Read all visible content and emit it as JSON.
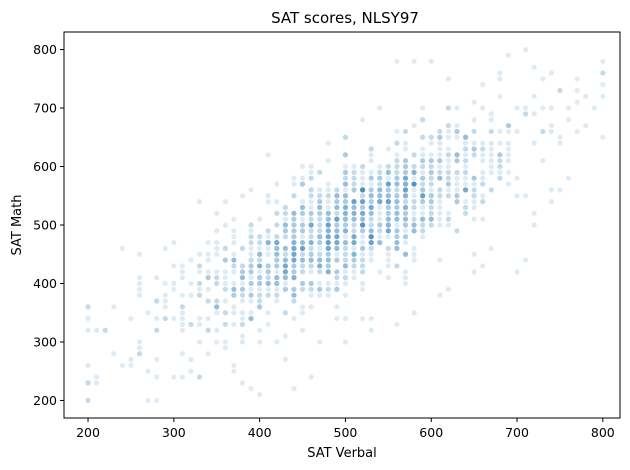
{
  "chart_data": {
    "type": "scatter",
    "title": "SAT scores, NLSY97",
    "xlabel": "SAT Verbal",
    "ylabel": "SAT Math",
    "xlim": [
      172,
      820
    ],
    "ylim": [
      170,
      830
    ],
    "xticks": [
      200,
      300,
      400,
      500,
      600,
      700,
      800
    ],
    "yticks": [
      200,
      300,
      400,
      500,
      600,
      700,
      800
    ],
    "grid": false,
    "legend": "none",
    "marker_color": "#1f77b4",
    "marker_alpha": 0.15,
    "trend": {
      "intercept": 155,
      "slope": 0.68,
      "noise": 52
    },
    "x_center": 500,
    "x_spread": 95,
    "n_points": 1400,
    "series": [
      {
        "values": [
          [
            200,
            360
          ],
          [
            200,
            340
          ],
          [
            200,
            320
          ],
          [
            200,
            260
          ],
          [
            200,
            230
          ],
          [
            210,
            230
          ],
          [
            210,
            320
          ],
          [
            220,
            320
          ],
          [
            230,
            360
          ],
          [
            240,
            460
          ],
          [
            250,
            270
          ],
          [
            250,
            260
          ],
          [
            260,
            450
          ],
          [
            260,
            300
          ],
          [
            260,
            380
          ],
          [
            260,
            410
          ],
          [
            270,
            200
          ],
          [
            270,
            250
          ],
          [
            270,
            350
          ],
          [
            280,
            200
          ],
          [
            280,
            240
          ],
          [
            280,
            340
          ],
          [
            290,
            400
          ],
          [
            300,
            240
          ],
          [
            310,
            240
          ],
          [
            320,
            250
          ],
          [
            330,
            240
          ],
          [
            340,
            280
          ],
          [
            350,
            300
          ],
          [
            360,
            290
          ],
          [
            370,
            260
          ],
          [
            370,
            250
          ],
          [
            380,
            230
          ],
          [
            390,
            220
          ],
          [
            400,
            210
          ],
          [
            420,
            300
          ],
          [
            430,
            270
          ],
          [
            440,
            220
          ],
          [
            460,
            240
          ],
          [
            470,
            300
          ],
          [
            500,
            300
          ],
          [
            520,
            340
          ],
          [
            530,
            320
          ],
          [
            560,
            330
          ],
          [
            580,
            350
          ],
          [
            610,
            380
          ],
          [
            620,
            390
          ],
          [
            650,
            420
          ],
          [
            650,
            450
          ],
          [
            670,
            460
          ],
          [
            700,
            420
          ],
          [
            710,
            440
          ],
          [
            720,
            500
          ],
          [
            730,
            660
          ],
          [
            740,
            540
          ],
          [
            750,
            560
          ],
          [
            760,
            580
          ],
          [
            770,
            660
          ],
          [
            780,
            670
          ],
          [
            790,
            700
          ],
          [
            800,
            650
          ],
          [
            800,
            720
          ],
          [
            800,
            740
          ],
          [
            800,
            760
          ],
          [
            800,
            780
          ],
          [
            780,
            720
          ],
          [
            770,
            750
          ],
          [
            750,
            730
          ],
          [
            740,
            700
          ],
          [
            720,
            770
          ],
          [
            710,
            800
          ],
          [
            690,
            790
          ],
          [
            680,
            760
          ],
          [
            660,
            740
          ],
          [
            650,
            710
          ],
          [
            620,
            700
          ],
          [
            600,
            780
          ],
          [
            580,
            780
          ],
          [
            560,
            780
          ],
          [
            540,
            700
          ],
          [
            520,
            680
          ],
          [
            500,
            650
          ],
          [
            480,
            640
          ],
          [
            460,
            600
          ],
          [
            440,
            580
          ],
          [
            420,
            570
          ],
          [
            410,
            620
          ],
          [
            390,
            560
          ],
          [
            360,
            500
          ],
          [
            350,
            520
          ],
          [
            330,
            540
          ],
          [
            300,
            470
          ],
          [
            290,
            460
          ],
          [
            310,
            360
          ],
          [
            330,
            400
          ],
          [
            340,
            370
          ],
          [
            350,
            410
          ],
          [
            360,
            350
          ],
          [
            370,
            380
          ],
          [
            380,
            420
          ],
          [
            390,
            400
          ],
          [
            400,
            430
          ],
          [
            410,
            390
          ],
          [
            420,
            450
          ],
          [
            430,
            410
          ],
          [
            440,
            480
          ],
          [
            450,
            470
          ],
          [
            460,
            500
          ],
          [
            470,
            490
          ],
          [
            480,
            520
          ],
          [
            490,
            510
          ],
          [
            500,
            530
          ],
          [
            510,
            540
          ],
          [
            520,
            560
          ],
          [
            530,
            520
          ],
          [
            540,
            580
          ],
          [
            550,
            560
          ],
          [
            560,
            600
          ],
          [
            570,
            590
          ],
          [
            580,
            620
          ],
          [
            590,
            610
          ],
          [
            600,
            640
          ],
          [
            610,
            600
          ],
          [
            620,
            630
          ],
          [
            630,
            660
          ],
          [
            640,
            650
          ],
          [
            650,
            680
          ],
          [
            660,
            630
          ],
          [
            670,
            690
          ],
          [
            680,
            720
          ],
          [
            690,
            660
          ],
          [
            700,
            700
          ],
          [
            710,
            690
          ],
          [
            720,
            720
          ],
          [
            730,
            700
          ],
          [
            740,
            660
          ],
          [
            750,
            640
          ]
        ]
      }
    ]
  }
}
